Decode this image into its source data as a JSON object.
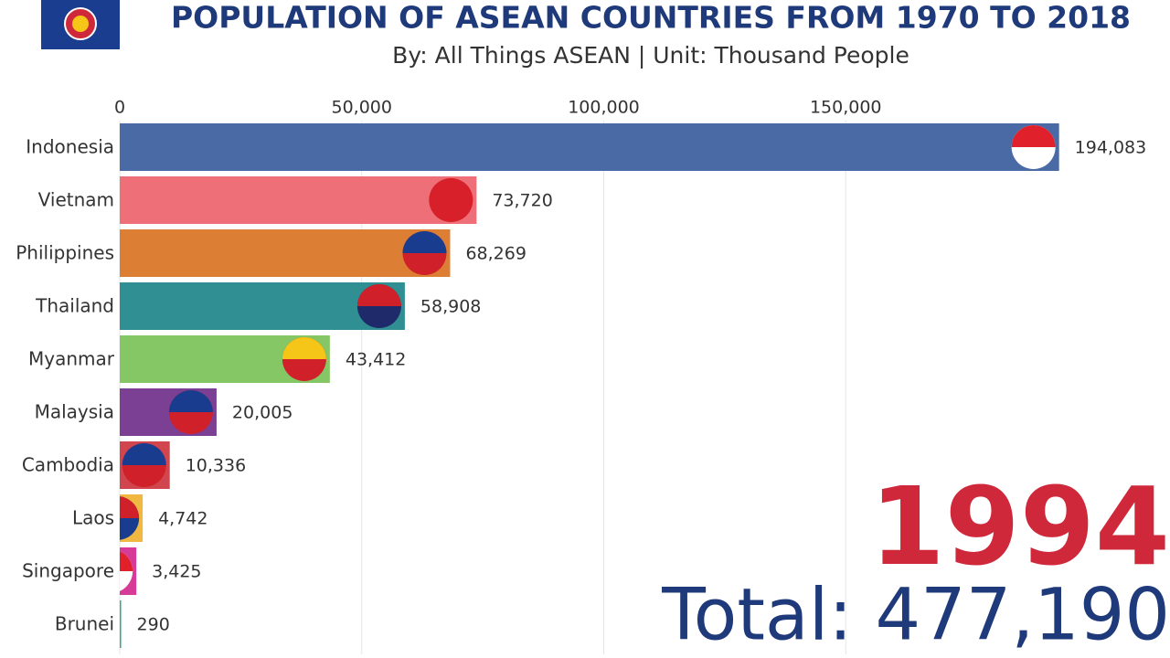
{
  "chart_data": {
    "type": "bar",
    "orientation": "horizontal",
    "title": "POPULATION OF ASEAN COUNTRIES FROM 1970 TO 2018",
    "subtitle": "By: All Things ASEAN | Unit: Thousand People",
    "categories": [
      "Indonesia",
      "Vietnam",
      "Philippines",
      "Thailand",
      "Myanmar",
      "Malaysia",
      "Cambodia",
      "Laos",
      "Singapore",
      "Brunei"
    ],
    "values": [
      194083,
      73720,
      68269,
      58908,
      43412,
      20005,
      10336,
      4742,
      3425,
      290
    ],
    "value_labels": [
      "194,083",
      "73,720",
      "68,269",
      "58,908",
      "43,412",
      "20,005",
      "10,336",
      "4,742",
      "3,425",
      "290"
    ],
    "colors": [
      "#4a6aa6",
      "#ef6f78",
      "#dc7f35",
      "#2f8f93",
      "#85c665",
      "#7b3f93",
      "#d0454e",
      "#f0b840",
      "#d63c97",
      "#3aa88a"
    ],
    "xlim": [
      0,
      217000
    ],
    "xticks": [
      0,
      {
        "value": 50000,
        "label": "50,000"
      },
      {
        "value": 100000,
        "label": "100,000"
      },
      {
        "value": 150000,
        "label": "150,000"
      }
    ],
    "grid": true,
    "year": 1994,
    "total": "Total: 477,190"
  }
}
